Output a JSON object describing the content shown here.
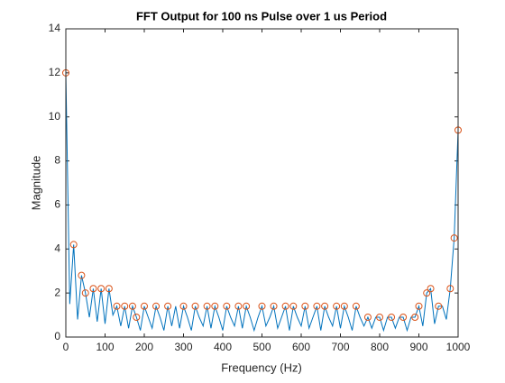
{
  "chart_data": {
    "type": "line",
    "title": "FFT Output for 100 ns Pulse over 1 us Period",
    "x_label": "Frequency (Hz)",
    "y_label": "Magnitude",
    "xlim": [
      0,
      1000
    ],
    "xticks": [
      0,
      100,
      200,
      300,
      400,
      500,
      600,
      700,
      800,
      900,
      1000
    ],
    "ylim": [
      0,
      14
    ],
    "yticks": [
      0,
      2,
      4,
      6,
      8,
      10,
      12,
      14
    ],
    "grid": false,
    "series": [
      {
        "mode": "line",
        "color": "#0072BD",
        "x": [
          0,
          10,
          20,
          30,
          40,
          50,
          60,
          70,
          80,
          90,
          100,
          110,
          120,
          130,
          140,
          150,
          160,
          170,
          180,
          190,
          200,
          210,
          220,
          230,
          240,
          250,
          260,
          270,
          280,
          290,
          300,
          310,
          320,
          330,
          340,
          350,
          360,
          370,
          380,
          390,
          400,
          410,
          420,
          430,
          440,
          450,
          460,
          470,
          480,
          490,
          500,
          510,
          520,
          530,
          540,
          550,
          560,
          570,
          580,
          590,
          600,
          610,
          620,
          630,
          640,
          650,
          660,
          670,
          680,
          690,
          700,
          710,
          720,
          730,
          740,
          750,
          760,
          770,
          780,
          790,
          800,
          810,
          820,
          830,
          840,
          850,
          860,
          870,
          880,
          890,
          900,
          910,
          920,
          930,
          940,
          950,
          960,
          970,
          980,
          990,
          1000
        ],
        "values": [
          12.0,
          1.5,
          4.2,
          0.8,
          2.8,
          2.0,
          0.9,
          2.2,
          0.7,
          2.2,
          0.6,
          2.2,
          1.0,
          1.4,
          0.5,
          1.4,
          0.4,
          1.4,
          0.9,
          0.3,
          1.4,
          0.9,
          0.4,
          1.4,
          0.9,
          0.3,
          1.4,
          0.5,
          1.4,
          0.4,
          1.4,
          0.9,
          0.3,
          1.4,
          0.9,
          0.5,
          1.4,
          0.4,
          1.4,
          0.9,
          0.3,
          1.4,
          0.9,
          0.5,
          1.4,
          0.4,
          1.4,
          0.9,
          0.3,
          0.9,
          1.4,
          0.5,
          0.9,
          1.4,
          0.4,
          0.9,
          1.4,
          0.3,
          1.4,
          0.9,
          0.5,
          1.4,
          0.4,
          0.9,
          1.4,
          0.3,
          1.4,
          0.9,
          0.5,
          1.4,
          0.4,
          1.4,
          0.9,
          0.3,
          1.4,
          0.9,
          0.5,
          0.9,
          0.4,
          0.9,
          0.9,
          0.3,
          0.9,
          0.9,
          0.4,
          0.9,
          0.9,
          0.3,
          0.9,
          0.9,
          1.4,
          0.5,
          2.0,
          2.2,
          0.6,
          1.4,
          1.4,
          0.8,
          2.2,
          4.5,
          9.4
        ]
      },
      {
        "mode": "markers",
        "color": "#D95319",
        "x": [
          0,
          20,
          40,
          50,
          70,
          90,
          110,
          130,
          150,
          170,
          180,
          200,
          230,
          260,
          300,
          330,
          360,
          380,
          410,
          440,
          460,
          500,
          530,
          560,
          580,
          610,
          640,
          660,
          690,
          710,
          740,
          770,
          800,
          830,
          860,
          890,
          900,
          920,
          930,
          950,
          980,
          990,
          1000
        ],
        "values": [
          12.0,
          4.2,
          2.8,
          2.0,
          2.2,
          2.2,
          2.2,
          1.4,
          1.4,
          1.4,
          0.9,
          1.4,
          1.4,
          1.4,
          1.4,
          1.4,
          1.4,
          1.4,
          1.4,
          1.4,
          1.4,
          1.4,
          1.4,
          1.4,
          1.4,
          1.4,
          1.4,
          1.4,
          1.4,
          1.4,
          1.4,
          0.9,
          0.9,
          0.9,
          0.9,
          0.9,
          1.4,
          2.0,
          2.2,
          1.4,
          2.2,
          4.5,
          9.4
        ]
      }
    ]
  }
}
